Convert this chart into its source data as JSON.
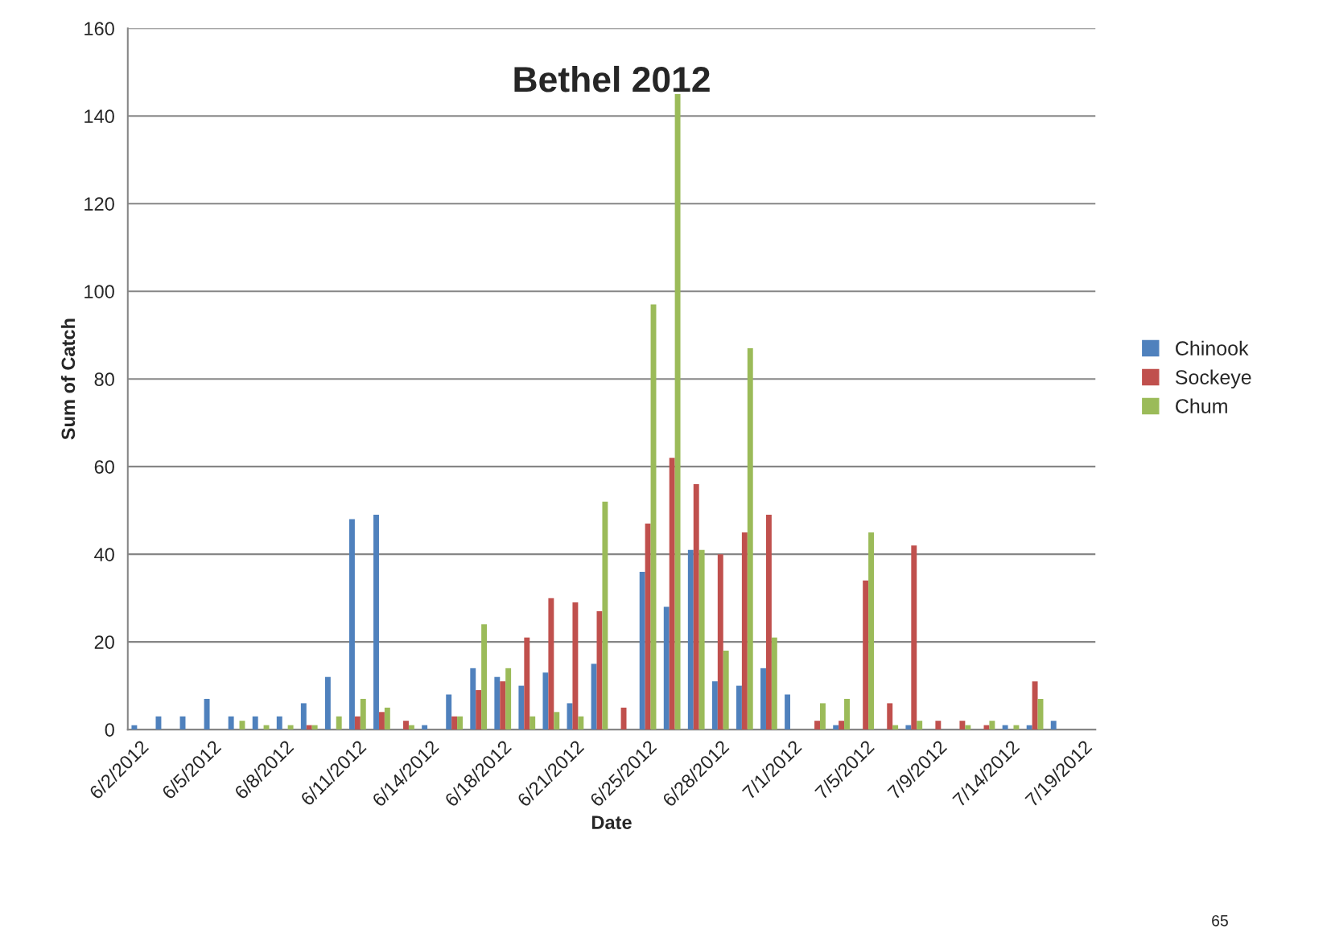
{
  "chart_data": {
    "type": "bar",
    "title": "Bethel 2012",
    "xlabel": "Date",
    "ylabel": "Sum of Catch",
    "categories": [
      "6/2/2012",
      null,
      null,
      "6/5/2012",
      null,
      null,
      "6/8/2012",
      null,
      null,
      "6/11/2012",
      null,
      null,
      "6/14/2012",
      null,
      null,
      "6/18/2012",
      null,
      null,
      "6/21/2012",
      null,
      null,
      "6/25/2012",
      null,
      null,
      "6/28/2012",
      null,
      null,
      "7/1/2012",
      null,
      null,
      "7/5/2012",
      null,
      null,
      "7/9/2012",
      null,
      null,
      "7/14/2012",
      null,
      null,
      "7/19/2012"
    ],
    "series": [
      {
        "name": "Chinook",
        "color": "#4f81bd",
        "values": [
          1,
          3,
          3,
          7,
          3,
          3,
          3,
          6,
          12,
          48,
          49,
          null,
          1,
          8,
          14,
          12,
          10,
          13,
          6,
          15,
          null,
          36,
          28,
          41,
          11,
          10,
          14,
          8,
          null,
          1,
          null,
          null,
          1,
          null,
          null,
          null,
          1,
          1,
          2,
          null
        ]
      },
      {
        "name": "Sockeye",
        "color": "#c0504d",
        "values": [
          null,
          null,
          null,
          null,
          null,
          null,
          null,
          1,
          null,
          3,
          4,
          2,
          null,
          3,
          9,
          11,
          21,
          30,
          29,
          27,
          5,
          47,
          62,
          56,
          40,
          45,
          49,
          null,
          2,
          2,
          34,
          6,
          42,
          2,
          2,
          1,
          null,
          11,
          null,
          null
        ]
      },
      {
        "name": "Chum",
        "color": "#9bbb59",
        "values": [
          null,
          null,
          null,
          null,
          2,
          1,
          1,
          1,
          3,
          7,
          5,
          1,
          null,
          3,
          24,
          14,
          3,
          4,
          3,
          52,
          null,
          97,
          145,
          41,
          18,
          87,
          21,
          null,
          6,
          7,
          45,
          1,
          2,
          null,
          1,
          2,
          1,
          7,
          null,
          null
        ]
      }
    ],
    "ylim": [
      0,
      160
    ],
    "yticks": [
      0,
      20,
      40,
      60,
      80,
      100,
      120,
      140,
      160
    ],
    "grid": "y",
    "legend": "right",
    "annotations": [
      "65"
    ]
  }
}
